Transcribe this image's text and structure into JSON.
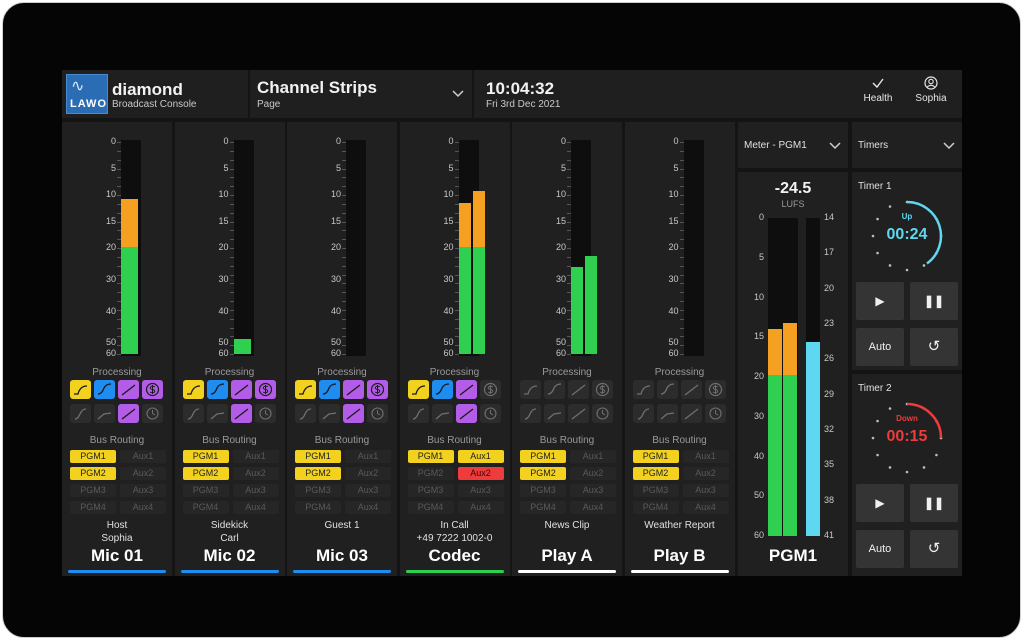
{
  "header": {
    "app_title": "diamond",
    "app_subtitle": "Broadcast Console",
    "logo_text": "LAWO",
    "page_title": "Channel Strips",
    "page_subtitle": "Page",
    "time": "10:04:32",
    "date": "Fri 3rd Dec 2021",
    "health_label": "Health",
    "user_label": "Sophia"
  },
  "scale_labels": [
    "0",
    "5",
    "10",
    "15",
    "20",
    "30",
    "40",
    "50",
    "60"
  ],
  "processing_label": "Processing",
  "bus_routing_label": "Bus Routing",
  "bus_names": [
    "PGM1",
    "Aux1",
    "PGM2",
    "Aux2",
    "PGM3",
    "Aux3",
    "PGM4",
    "Aux4"
  ],
  "colors": {
    "green": "#2fcf4f",
    "orange": "#f5a020",
    "yellow": "#f2d21f",
    "blue": "#1f8cf0",
    "purple": "#b35ce8",
    "red": "#ee3b3b",
    "cyan": "#5ed8f0",
    "inactive": "#2c2c2c"
  },
  "strips": [
    {
      "line1": "Host",
      "line2": "Sophia",
      "name": "Mic 01",
      "underline": "#1f8cf0",
      "levels": [
        0.73
      ],
      "proc": [
        "yellow",
        "blue",
        "purple",
        "purple",
        "off",
        "off",
        "purple",
        "off"
      ],
      "routing": [
        "yellow",
        "off",
        "yellow",
        "off",
        "off",
        "off",
        "off",
        "off"
      ]
    },
    {
      "line1": "Sidekick",
      "line2": "Carl",
      "name": "Mic 02",
      "underline": "#1f8cf0",
      "levels": [
        0.07
      ],
      "proc": [
        "yellow",
        "blue",
        "purple",
        "purple",
        "off",
        "off",
        "purple",
        "off"
      ],
      "routing": [
        "yellow",
        "off",
        "yellow",
        "off",
        "off",
        "off",
        "off",
        "off"
      ]
    },
    {
      "line1": "Guest 1",
      "line2": "",
      "name": "Mic 03",
      "underline": "#1f8cf0",
      "levels": [
        0
      ],
      "proc": [
        "yellow",
        "blue",
        "purple",
        "purple",
        "off",
        "off",
        "purple",
        "off"
      ],
      "routing": [
        "yellow",
        "off",
        "yellow",
        "off",
        "off",
        "off",
        "off",
        "off"
      ]
    },
    {
      "line1": "In Call",
      "line2": "+49 7222 1002-0",
      "name": "Codec",
      "underline": "#2fcf4f",
      "levels": [
        0.71,
        0.77
      ],
      "proc": [
        "yellow",
        "blue",
        "purple",
        "off",
        "off",
        "off",
        "purple",
        "off"
      ],
      "routing": [
        "yellow",
        "yellow",
        "off",
        "red",
        "off",
        "off",
        "off",
        "off"
      ]
    },
    {
      "line1": "News Clip",
      "line2": "",
      "name": "Play A",
      "underline": "#ffffff",
      "levels": [
        0.41,
        0.46
      ],
      "proc": [
        "off",
        "off",
        "off",
        "off",
        "off",
        "off",
        "off",
        "off"
      ],
      "routing": [
        "yellow",
        "off",
        "yellow",
        "off",
        "off",
        "off",
        "off",
        "off"
      ]
    },
    {
      "line1": "Weather Report",
      "line2": "",
      "name": "Play B",
      "underline": "#ffffff",
      "levels": [
        0
      ],
      "proc": [
        "off",
        "off",
        "off",
        "off",
        "off",
        "off",
        "off",
        "off"
      ],
      "routing": [
        "yellow",
        "off",
        "yellow",
        "off",
        "off",
        "off",
        "off",
        "off"
      ]
    }
  ],
  "meter": {
    "title": "Meter - PGM1",
    "lufs_value": "-24.5",
    "lufs_unit": "LUFS",
    "left_scale": [
      "0",
      "5",
      "10",
      "15",
      "20",
      "30",
      "40",
      "50",
      "60"
    ],
    "right_scale": [
      "14",
      "17",
      "20",
      "23",
      "26",
      "29",
      "32",
      "35",
      "38",
      "41"
    ],
    "levels": [
      0.65,
      0.67
    ],
    "loudness_level": 0.61,
    "name": "PGM1"
  },
  "timers": {
    "title": "Timers",
    "timer1": {
      "label": "Timer 1",
      "mode": "Up",
      "time": "00:24",
      "progress": 0.4
    },
    "timer2": {
      "label": "Timer 2",
      "mode": "Down",
      "time": "00:15",
      "progress": 0.25
    },
    "auto_label": "Auto"
  }
}
